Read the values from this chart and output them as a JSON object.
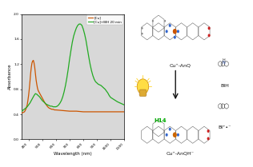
{
  "background_color": "#ffffff",
  "plot_bg": "#d8d8d8",
  "xlabel": "Wavelength (nm)",
  "ylabel": "Absorbance",
  "xlim": [
    350,
    1100
  ],
  "ylim": [
    0.0,
    2.0
  ],
  "xticks": [
    400,
    500,
    600,
    700,
    800,
    900,
    1000,
    1100
  ],
  "yticks": [
    0.0,
    0.4,
    0.8,
    1.2,
    1.6,
    2.0
  ],
  "legend": [
    {
      "label": "[Cu]",
      "color": "#cc5500"
    },
    {
      "label": "[Cu]+BIH 20 min",
      "color": "#22aa22"
    }
  ],
  "orange_x": [
    350,
    370,
    380,
    390,
    395,
    400,
    405,
    410,
    415,
    420,
    425,
    430,
    435,
    440,
    445,
    450,
    455,
    460,
    465,
    470,
    475,
    480,
    490,
    500,
    510,
    520,
    530,
    540,
    550,
    560,
    570,
    580,
    590,
    600,
    650,
    700,
    750,
    800,
    900,
    1000,
    1100
  ],
  "orange_y": [
    0.42,
    0.44,
    0.48,
    0.55,
    0.62,
    0.7,
    0.8,
    0.92,
    1.05,
    1.15,
    1.22,
    1.25,
    1.26,
    1.22,
    1.15,
    1.05,
    0.95,
    0.88,
    0.82,
    0.78,
    0.76,
    0.74,
    0.7,
    0.66,
    0.62,
    0.58,
    0.55,
    0.52,
    0.5,
    0.49,
    0.48,
    0.48,
    0.47,
    0.47,
    0.46,
    0.45,
    0.45,
    0.44,
    0.44,
    0.44,
    0.44
  ],
  "green_x": [
    350,
    380,
    390,
    400,
    410,
    420,
    430,
    440,
    450,
    460,
    470,
    480,
    490,
    500,
    510,
    520,
    530,
    540,
    550,
    560,
    570,
    580,
    590,
    600,
    610,
    620,
    630,
    640,
    650,
    660,
    670,
    680,
    690,
    700,
    710,
    720,
    730,
    740,
    750,
    760,
    770,
    780,
    790,
    800,
    810,
    820,
    830,
    840,
    850,
    860,
    870,
    880,
    890,
    900,
    910,
    920,
    930,
    940,
    950,
    960,
    970,
    980,
    990,
    1000,
    1050,
    1100
  ],
  "green_y": [
    0.45,
    0.5,
    0.52,
    0.55,
    0.58,
    0.62,
    0.66,
    0.7,
    0.73,
    0.72,
    0.7,
    0.68,
    0.65,
    0.62,
    0.6,
    0.58,
    0.56,
    0.55,
    0.54,
    0.53,
    0.53,
    0.52,
    0.52,
    0.52,
    0.53,
    0.55,
    0.58,
    0.62,
    0.68,
    0.76,
    0.86,
    0.98,
    1.12,
    1.28,
    1.42,
    1.55,
    1.65,
    1.72,
    1.78,
    1.82,
    1.84,
    1.84,
    1.82,
    1.76,
    1.68,
    1.58,
    1.45,
    1.32,
    1.2,
    1.1,
    1.02,
    0.96,
    0.92,
    0.9,
    0.88,
    0.87,
    0.86,
    0.84,
    0.82,
    0.8,
    0.77,
    0.74,
    0.7,
    0.67,
    0.6,
    0.55
  ],
  "top_label": "Cu⁺-AnQ",
  "bottom_label": "Cu⁺-AnQH⁻",
  "h14_color": "#00aa00",
  "arrow_color": "#111111",
  "bulb_color": "#ffaa00",
  "bih_label": "BIH",
  "bi_label": "BI⁺•⁻"
}
